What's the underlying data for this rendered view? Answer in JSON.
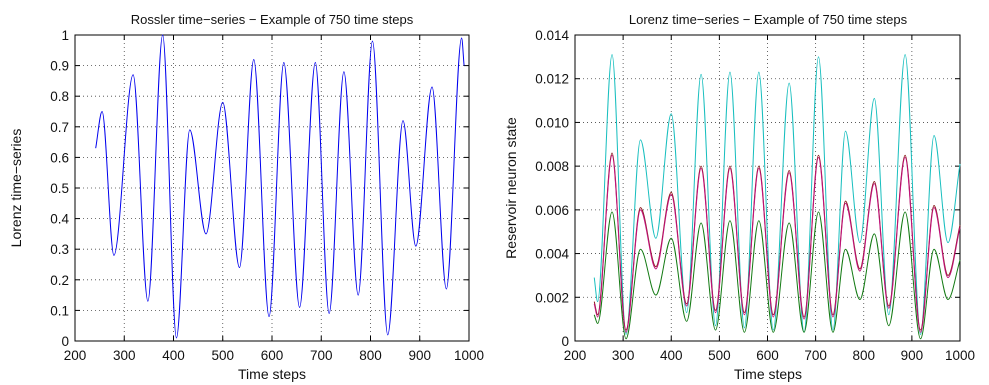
{
  "chart_data": [
    {
      "type": "line",
      "title": "Rossler time−series − Example of 750 time steps",
      "xlabel": "Time steps",
      "ylabel": "Lorenz time−series",
      "xlim": [
        200,
        1000
      ],
      "ylim": [
        0,
        1
      ],
      "xticks": [
        "200",
        "300",
        "400",
        "500",
        "600",
        "700",
        "800",
        "900",
        "1000"
      ],
      "yticks": [
        "0",
        "0.1",
        "0.2",
        "0.3",
        "0.4",
        "0.5",
        "0.6",
        "0.7",
        "0.8",
        "0.9",
        "1"
      ],
      "grid": true,
      "series": [
        {
          "color": "#0000ee",
          "x": [
            242,
            255,
            279,
            318,
            348,
            378,
            406,
            433,
            466,
            500,
            534,
            563,
            594,
            624,
            656,
            688,
            716,
            746,
            775,
            804,
            835,
            866,
            892,
            925,
            954,
            985,
            990
          ],
          "y": [
            0.63,
            0.75,
            0.28,
            0.87,
            0.13,
            1.0,
            0.01,
            0.69,
            0.35,
            0.78,
            0.24,
            0.92,
            0.08,
            0.91,
            0.11,
            0.91,
            0.09,
            0.88,
            0.15,
            0.98,
            0.02,
            0.72,
            0.31,
            0.83,
            0.17,
            0.99,
            0.9
          ]
        }
      ]
    },
    {
      "type": "line",
      "title": "Lorenz time−series − Example of 750 time steps",
      "xlabel": "Time steps",
      "ylabel": "Reservoir neuron state",
      "xlim": [
        200,
        1000
      ],
      "ylim": [
        0,
        0.014
      ],
      "xticks": [
        "200",
        "300",
        "400",
        "500",
        "600",
        "700",
        "800",
        "900",
        "1000"
      ],
      "yticks": [
        "0",
        "0.002",
        "0.004",
        "0.006",
        "0.008",
        "0.010",
        "0.012",
        "0.014"
      ],
      "grid": true,
      "series": [
        {
          "color": "#19bfbf",
          "x": [
            240,
            247,
            277,
            306,
            336,
            368,
            400,
            432,
            462,
            492,
            522,
            552,
            582,
            612,
            645,
            676,
            706,
            736,
            762,
            792,
            822,
            852,
            886,
            918,
            946,
            975,
            1000
          ],
          "y": [
            0.0029,
            0.0018,
            0.0131,
            0.0003,
            0.0092,
            0.0047,
            0.0104,
            0.0013,
            0.0122,
            0.0007,
            0.0123,
            0.0006,
            0.0123,
            0.0005,
            0.0118,
            0.0004,
            0.013,
            0.0005,
            0.0096,
            0.0045,
            0.0111,
            0.0012,
            0.0131,
            0.0003,
            0.0094,
            0.0045,
            0.0081
          ]
        },
        {
          "color": "#8b1a1a",
          "x": [
            240,
            247,
            277,
            306,
            336,
            368,
            400,
            432,
            462,
            492,
            522,
            552,
            582,
            612,
            645,
            676,
            706,
            736,
            762,
            792,
            822,
            852,
            886,
            918,
            946,
            975,
            1000
          ],
          "y": [
            0.0018,
            0.0012,
            0.0086,
            0.0005,
            0.0061,
            0.0034,
            0.0068,
            0.0017,
            0.008,
            0.0014,
            0.008,
            0.0013,
            0.008,
            0.0012,
            0.0078,
            0.0011,
            0.0085,
            0.0012,
            0.0064,
            0.0033,
            0.0073,
            0.0016,
            0.0085,
            0.0005,
            0.0062,
            0.003,
            0.0053
          ]
        },
        {
          "color": "#c0127a",
          "x": [
            240,
            247,
            277,
            306,
            336,
            368,
            400,
            432,
            462,
            492,
            522,
            552,
            582,
            612,
            645,
            676,
            706,
            736,
            762,
            792,
            822,
            852,
            886,
            918,
            946,
            975,
            1000
          ],
          "y": [
            0.0017,
            0.0011,
            0.0085,
            0.0004,
            0.006,
            0.0033,
            0.0067,
            0.0016,
            0.0079,
            0.0013,
            0.0079,
            0.0012,
            0.0079,
            0.0011,
            0.0077,
            0.001,
            0.0084,
            0.0011,
            0.0063,
            0.0032,
            0.0072,
            0.0015,
            0.0084,
            0.0004,
            0.0061,
            0.0029,
            0.0052
          ]
        },
        {
          "color": "#137a13",
          "x": [
            240,
            247,
            277,
            306,
            336,
            368,
            400,
            432,
            462,
            492,
            522,
            552,
            582,
            612,
            645,
            676,
            706,
            736,
            762,
            792,
            822,
            852,
            886,
            918,
            946,
            975,
            1000
          ],
          "y": [
            0.0012,
            0.0008,
            0.0059,
            0.0001,
            0.0042,
            0.0021,
            0.0047,
            0.0009,
            0.0054,
            0.0005,
            0.0055,
            0.0004,
            0.0055,
            0.0004,
            0.0054,
            0.0004,
            0.0059,
            0.0004,
            0.0042,
            0.0019,
            0.0049,
            0.0007,
            0.0059,
            0.0001,
            0.0042,
            0.0019,
            0.0037
          ]
        }
      ]
    }
  ]
}
